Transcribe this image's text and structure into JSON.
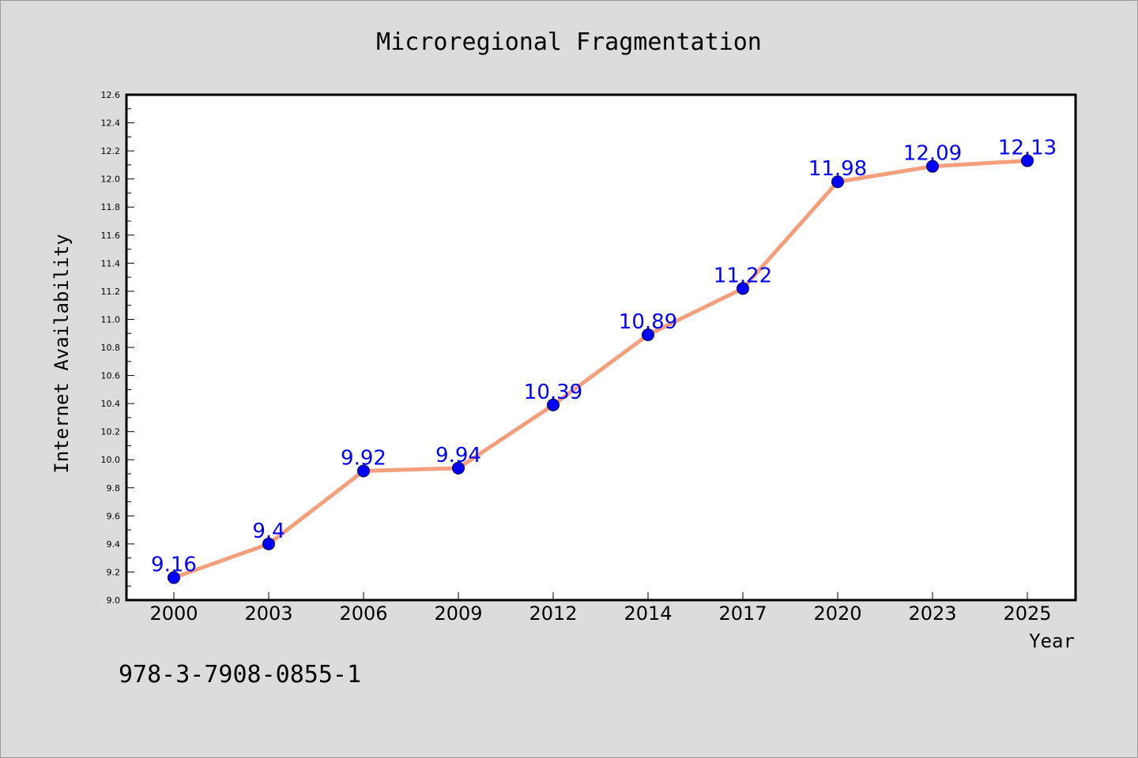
{
  "colors": {
    "background": "#dcdcdc",
    "plot_background": "#ffffff",
    "line": "#f4a07e",
    "marker": "#0000ff",
    "data_label": "#0000ff"
  },
  "chart_data": {
    "type": "line",
    "title": "Microregional Fragmentation",
    "xlabel": "Year",
    "ylabel": "Internet Availability",
    "categories": [
      "2000",
      "2003",
      "2006",
      "2009",
      "2012",
      "2014",
      "2017",
      "2020",
      "2023",
      "2025"
    ],
    "series": [
      {
        "values": [
          9.16,
          9.4,
          9.92,
          9.94,
          10.39,
          10.89,
          11.22,
          11.98,
          12.09,
          12.13
        ],
        "labels": [
          "9.16",
          "9.4",
          "9.92",
          "9.94",
          "10.39",
          "10.89",
          "11.22",
          "11.98",
          "12.09",
          "12.13"
        ]
      }
    ],
    "ylim": [
      9.0,
      12.6
    ],
    "yticks": [
      "9.0",
      "9.2",
      "9.4",
      "9.6",
      "9.8",
      "10.0",
      "10.2",
      "10.4",
      "10.6",
      "10.8",
      "11.0",
      "11.2",
      "11.4",
      "11.6",
      "11.8",
      "12.0",
      "12.2",
      "12.4",
      "12.6"
    ],
    "grid": false,
    "legend": "none"
  },
  "footer": {
    "isbn": "978-3-7908-0855-1"
  }
}
